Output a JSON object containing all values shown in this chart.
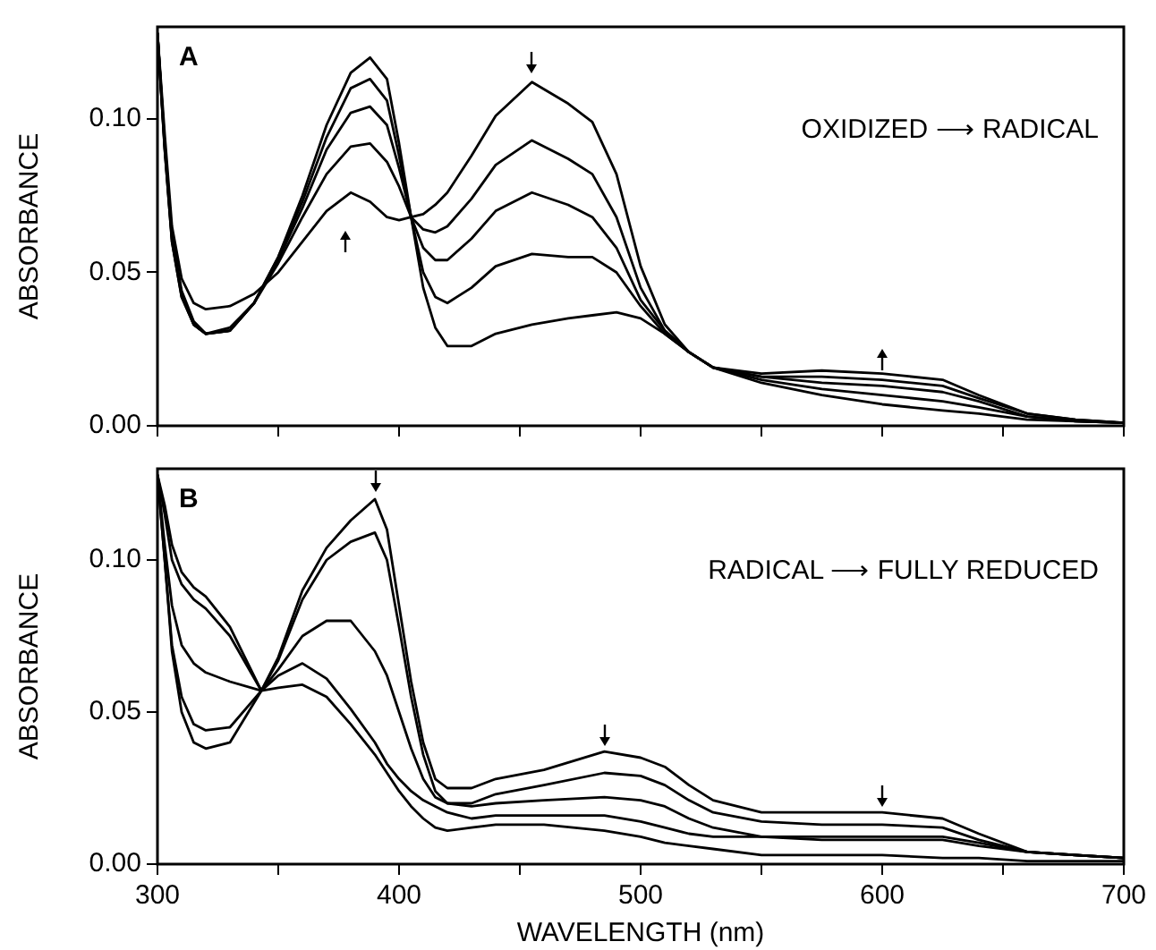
{
  "chart_data": [
    {
      "type": "line",
      "ylabel": "ABSORBANCE",
      "xlim": [
        300,
        700
      ],
      "xticks": [
        300,
        {
          "value": 350,
          "label": null
        },
        400,
        {
          "value": 450,
          "label": null
        },
        500,
        {
          "value": 550,
          "label": null
        },
        600,
        {
          "value": 650,
          "label": null
        },
        700
      ],
      "ylim": [
        0,
        0.13
      ],
      "yticks": [
        {
          "value": 0,
          "label": "0.00"
        },
        {
          "value": 0.05,
          "label": "0.05"
        },
        {
          "value": 0.1,
          "label": "0.10"
        }
      ],
      "tick_labels": "y",
      "legend": false,
      "x": [
        300,
        303,
        306,
        310,
        315,
        320,
        330,
        340,
        350,
        360,
        370,
        380,
        388,
        395,
        400,
        405,
        410,
        415,
        420,
        430,
        440,
        455,
        470,
        480,
        490,
        500,
        510,
        520,
        530,
        550,
        575,
        600,
        625,
        640,
        660,
        680,
        700
      ],
      "series": [
        {
          "color": "#000000",
          "values": [
            0.128,
            0.095,
            0.065,
            0.048,
            0.04,
            0.038,
            0.039,
            0.043,
            0.05,
            0.06,
            0.07,
            0.076,
            0.073,
            0.068,
            0.067,
            0.068,
            0.069,
            0.072,
            0.076,
            0.088,
            0.101,
            0.112,
            0.105,
            0.099,
            0.082,
            0.052,
            0.033,
            0.024,
            0.019,
            0.014,
            0.01,
            0.007,
            0.005,
            0.004,
            0.002,
            0.0015,
            0.001
          ]
        },
        {
          "color": "#000000",
          "values": [
            0.128,
            0.092,
            0.062,
            0.044,
            0.034,
            0.03,
            0.032,
            0.04,
            0.053,
            0.068,
            0.082,
            0.091,
            0.092,
            0.086,
            0.078,
            0.068,
            0.064,
            0.063,
            0.065,
            0.074,
            0.085,
            0.093,
            0.087,
            0.082,
            0.068,
            0.045,
            0.031,
            0.024,
            0.019,
            0.015,
            0.012,
            0.01,
            0.008,
            0.006,
            0.003,
            0.0015,
            0.001
          ]
        },
        {
          "color": "#000000",
          "values": [
            0.128,
            0.091,
            0.061,
            0.043,
            0.033,
            0.03,
            0.031,
            0.04,
            0.054,
            0.071,
            0.09,
            0.102,
            0.104,
            0.098,
            0.084,
            0.068,
            0.058,
            0.054,
            0.054,
            0.061,
            0.07,
            0.076,
            0.072,
            0.068,
            0.058,
            0.041,
            0.031,
            0.024,
            0.019,
            0.016,
            0.014,
            0.013,
            0.011,
            0.008,
            0.003,
            0.0015,
            0.001
          ]
        },
        {
          "color": "#000000",
          "values": [
            0.128,
            0.09,
            0.06,
            0.042,
            0.033,
            0.03,
            0.031,
            0.04,
            0.055,
            0.073,
            0.094,
            0.11,
            0.113,
            0.106,
            0.088,
            0.068,
            0.05,
            0.042,
            0.04,
            0.045,
            0.052,
            0.056,
            0.055,
            0.055,
            0.05,
            0.039,
            0.03,
            0.024,
            0.019,
            0.016,
            0.016,
            0.015,
            0.013,
            0.009,
            0.004,
            0.002,
            0.001
          ]
        },
        {
          "color": "#000000",
          "values": [
            0.128,
            0.09,
            0.06,
            0.042,
            0.033,
            0.03,
            0.031,
            0.04,
            0.055,
            0.075,
            0.098,
            0.115,
            0.12,
            0.113,
            0.092,
            0.068,
            0.045,
            0.032,
            0.026,
            0.026,
            0.03,
            0.033,
            0.035,
            0.036,
            0.037,
            0.035,
            0.03,
            0.024,
            0.019,
            0.017,
            0.018,
            0.017,
            0.015,
            0.01,
            0.004,
            0.002,
            0.001
          ]
        }
      ],
      "annotations": [
        "A",
        "OXIDIZED ⟶ RADICAL"
      ]
    },
    {
      "type": "line",
      "xlabel": "WAVELENGTH (nm)",
      "ylabel": "ABSORBANCE",
      "xlim": [
        300,
        700
      ],
      "xticks": [
        300,
        {
          "value": 350,
          "label": null
        },
        400,
        {
          "value": 450,
          "label": null
        },
        500,
        {
          "value": 550,
          "label": null
        },
        600,
        {
          "value": 650,
          "label": null
        },
        700
      ],
      "ylim": [
        0,
        0.13
      ],
      "yticks": [
        {
          "value": 0,
          "label": "0.00"
        },
        {
          "value": 0.05,
          "label": "0.05"
        },
        {
          "value": 0.1,
          "label": "0.10"
        }
      ],
      "legend": false,
      "x": [
        300,
        303,
        306,
        310,
        315,
        320,
        330,
        343,
        350,
        360,
        370,
        380,
        390,
        395,
        400,
        405,
        410,
        415,
        420,
        430,
        440,
        460,
        485,
        500,
        510,
        520,
        530,
        550,
        575,
        600,
        625,
        640,
        660,
        680,
        700
      ],
      "series": [
        {
          "color": "#000000",
          "values": [
            0.128,
            0.1,
            0.07,
            0.05,
            0.04,
            0.038,
            0.04,
            0.057,
            0.068,
            0.09,
            0.104,
            0.113,
            0.12,
            0.11,
            0.085,
            0.06,
            0.04,
            0.028,
            0.025,
            0.025,
            0.028,
            0.031,
            0.037,
            0.035,
            0.032,
            0.026,
            0.021,
            0.017,
            0.017,
            0.017,
            0.015,
            0.01,
            0.004,
            0.003,
            0.002
          ]
        },
        {
          "color": "#000000",
          "values": [
            0.128,
            0.1,
            0.072,
            0.055,
            0.046,
            0.044,
            0.045,
            0.057,
            0.067,
            0.087,
            0.1,
            0.106,
            0.109,
            0.1,
            0.078,
            0.055,
            0.036,
            0.024,
            0.02,
            0.02,
            0.023,
            0.026,
            0.03,
            0.029,
            0.026,
            0.021,
            0.017,
            0.014,
            0.013,
            0.013,
            0.012,
            0.008,
            0.004,
            0.003,
            0.002
          ]
        },
        {
          "color": "#000000",
          "values": [
            0.128,
            0.105,
            0.085,
            0.072,
            0.066,
            0.063,
            0.06,
            0.057,
            0.064,
            0.075,
            0.08,
            0.08,
            0.07,
            0.062,
            0.05,
            0.038,
            0.028,
            0.022,
            0.02,
            0.019,
            0.02,
            0.021,
            0.022,
            0.021,
            0.019,
            0.015,
            0.012,
            0.009,
            0.009,
            0.009,
            0.009,
            0.007,
            0.004,
            0.003,
            0.002
          ]
        },
        {
          "color": "#000000",
          "values": [
            0.128,
            0.115,
            0.1,
            0.092,
            0.087,
            0.084,
            0.075,
            0.057,
            0.062,
            0.066,
            0.061,
            0.051,
            0.04,
            0.033,
            0.028,
            0.024,
            0.021,
            0.019,
            0.017,
            0.015,
            0.016,
            0.016,
            0.016,
            0.014,
            0.012,
            0.01,
            0.009,
            0.009,
            0.008,
            0.008,
            0.008,
            0.006,
            0.004,
            0.003,
            0.002
          ]
        },
        {
          "color": "#000000",
          "values": [
            0.128,
            0.118,
            0.105,
            0.096,
            0.091,
            0.088,
            0.078,
            0.057,
            0.058,
            0.059,
            0.055,
            0.046,
            0.036,
            0.03,
            0.024,
            0.019,
            0.015,
            0.012,
            0.011,
            0.012,
            0.013,
            0.013,
            0.011,
            0.009,
            0.007,
            0.006,
            0.005,
            0.003,
            0.003,
            0.003,
            0.002,
            0.002,
            0.001,
            0.001,
            0.001
          ]
        }
      ],
      "annotations": [
        "B",
        "RADICAL ⟶ FULLY REDUCED"
      ]
    }
  ]
}
